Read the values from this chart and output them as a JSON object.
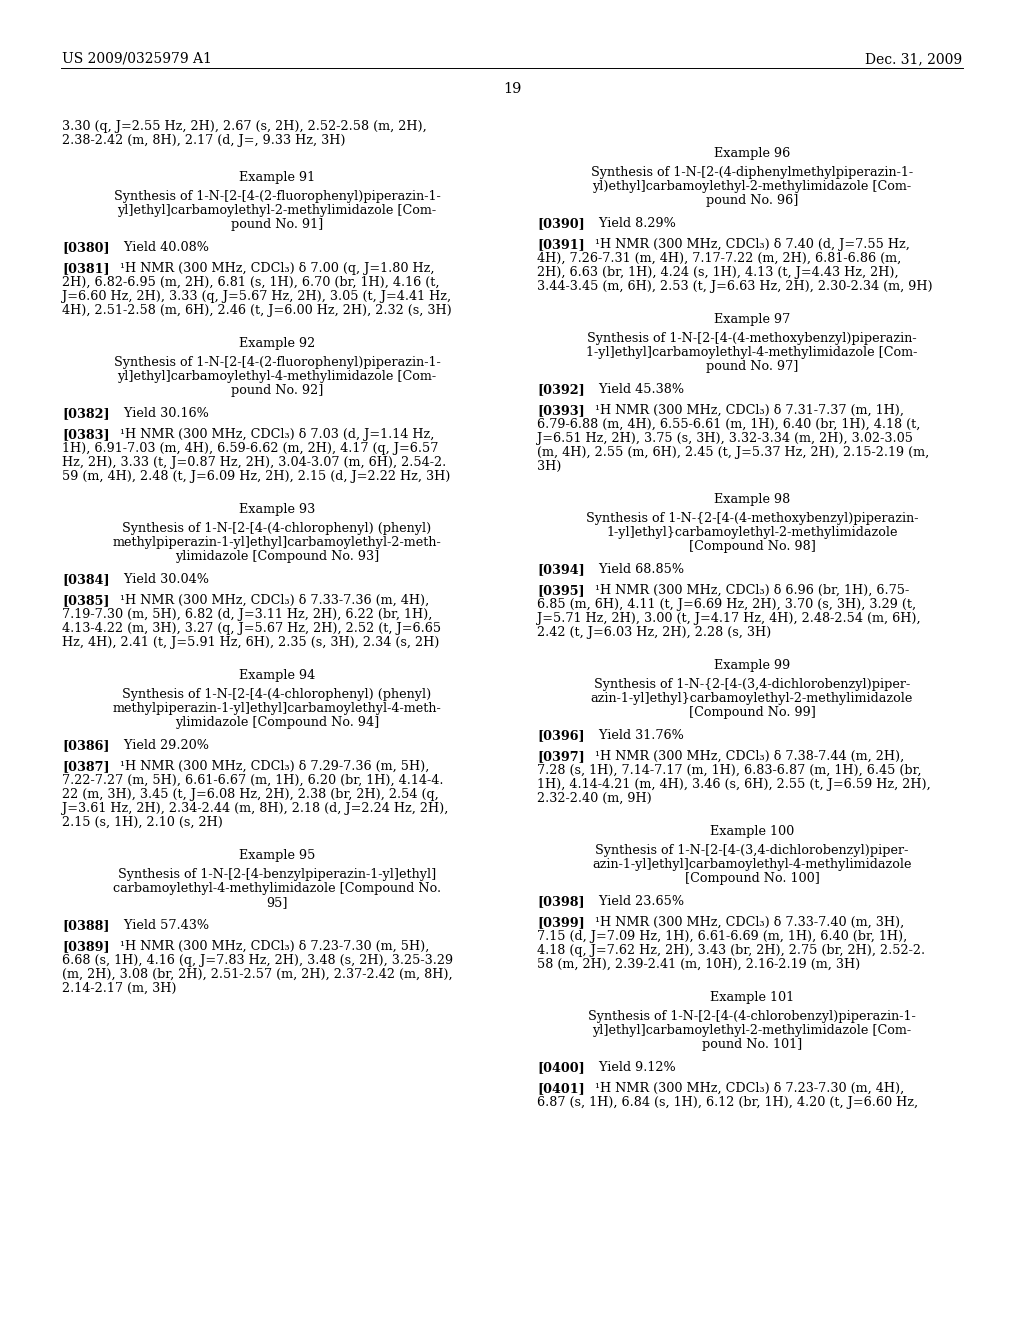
{
  "header_left": "US 2009/0325979 A1",
  "header_right": "Dec. 31, 2009",
  "page_number": "19",
  "background_color": "#ffffff",
  "left_column": [
    {
      "type": "continuation",
      "lines": [
        "3.30 (q, J=2.55 Hz, 2H), 2.67 (s, 2H), 2.52-2.58 (m, 2H),",
        "2.38-2.42 (m, 8H), 2.17 (d, J=, 9.33 Hz, 3H)"
      ]
    },
    {
      "type": "example_header",
      "text": "Example 91"
    },
    {
      "type": "example_title",
      "lines": [
        "Synthesis of 1-N-[2-[4-(2-fluorophenyl)piperazin-1-",
        "yl]ethyl]carbamoylethyl-2-methylimidazole [Com-",
        "pound No. 91]"
      ]
    },
    {
      "type": "yield",
      "tag": "[0380]",
      "text": "Yield 40.08%"
    },
    {
      "type": "nmr",
      "tag": "[0381]",
      "lines": [
        "¹H NMR (300 MHz, CDCl₃) δ 7.00 (q, J=1.80 Hz,",
        "2H), 6.82-6.95 (m, 2H), 6.81 (s, 1H), 6.70 (br, 1H), 4.16 (t,",
        "J=6.60 Hz, 2H), 3.33 (q, J=5.67 Hz, 2H), 3.05 (t, J=4.41 Hz,",
        "4H), 2.51-2.58 (m, 6H), 2.46 (t, J=6.00 Hz, 2H), 2.32 (s, 3H)"
      ]
    },
    {
      "type": "example_header",
      "text": "Example 92"
    },
    {
      "type": "example_title",
      "lines": [
        "Synthesis of 1-N-[2-[4-(2-fluorophenyl)piperazin-1-",
        "yl]ethyl]carbamoylethyl-4-methylimidazole [Com-",
        "pound No. 92]"
      ]
    },
    {
      "type": "yield",
      "tag": "[0382]",
      "text": "Yield 30.16%"
    },
    {
      "type": "nmr",
      "tag": "[0383]",
      "lines": [
        "¹H NMR (300 MHz, CDCl₃) δ 7.03 (d, J=1.14 Hz,",
        "1H), 6.91-7.03 (m, 4H), 6.59-6.62 (m, 2H), 4.17 (q, J=6.57",
        "Hz, 2H), 3.33 (t, J=0.87 Hz, 2H), 3.04-3.07 (m, 6H), 2.54-2.",
        "59 (m, 4H), 2.48 (t, J=6.09 Hz, 2H), 2.15 (d, J=2.22 Hz, 3H)"
      ]
    },
    {
      "type": "example_header",
      "text": "Example 93"
    },
    {
      "type": "example_title",
      "lines": [
        "Synthesis of 1-N-[2-[4-(4-chlorophenyl) (phenyl)",
        "methylpiperazin-1-yl]ethyl]carbamoylethyl-2-meth-",
        "ylimidazole [Compound No. 93]"
      ]
    },
    {
      "type": "yield",
      "tag": "[0384]",
      "text": "Yield 30.04%"
    },
    {
      "type": "nmr",
      "tag": "[0385]",
      "lines": [
        "¹H NMR (300 MHz, CDCl₃) δ 7.33-7.36 (m, 4H),",
        "7.19-7.30 (m, 5H), 6.82 (d, J=3.11 Hz, 2H), 6.22 (br, 1H),",
        "4.13-4.22 (m, 3H), 3.27 (q, J=5.67 Hz, 2H), 2.52 (t, J=6.65",
        "Hz, 4H), 2.41 (t, J=5.91 Hz, 6H), 2.35 (s, 3H), 2.34 (s, 2H)"
      ]
    },
    {
      "type": "example_header",
      "text": "Example 94"
    },
    {
      "type": "example_title",
      "lines": [
        "Synthesis of 1-N-[2-[4-(4-chlorophenyl) (phenyl)",
        "methylpiperazin-1-yl]ethyl]carbamoylethyl-4-meth-",
        "ylimidazole [Compound No. 94]"
      ]
    },
    {
      "type": "yield",
      "tag": "[0386]",
      "text": "Yield 29.20%"
    },
    {
      "type": "nmr",
      "tag": "[0387]",
      "lines": [
        "¹H NMR (300 MHz, CDCl₃) δ 7.29-7.36 (m, 5H),",
        "7.22-7.27 (m, 5H), 6.61-6.67 (m, 1H), 6.20 (br, 1H), 4.14-4.",
        "22 (m, 3H), 3.45 (t, J=6.08 Hz, 2H), 2.38 (br, 2H), 2.54 (q,",
        "J=3.61 Hz, 2H), 2.34-2.44 (m, 8H), 2.18 (d, J=2.24 Hz, 2H),",
        "2.15 (s, 1H), 2.10 (s, 2H)"
      ]
    },
    {
      "type": "example_header",
      "text": "Example 95"
    },
    {
      "type": "example_title",
      "lines": [
        "Synthesis of 1-N-[2-[4-benzylpiperazin-1-yl]ethyl]",
        "carbamoylethyl-4-methylimidazole [Compound No.",
        "95]"
      ]
    },
    {
      "type": "yield",
      "tag": "[0388]",
      "text": "Yield 57.43%"
    },
    {
      "type": "nmr",
      "tag": "[0389]",
      "lines": [
        "¹H NMR (300 MHz, CDCl₃) δ 7.23-7.30 (m, 5H),",
        "6.68 (s, 1H), 4.16 (q, J=7.83 Hz, 2H), 3.48 (s, 2H), 3.25-3.29",
        "(m, 2H), 3.08 (br, 2H), 2.51-2.57 (m, 2H), 2.37-2.42 (m, 8H),",
        "2.14-2.17 (m, 3H)"
      ]
    }
  ],
  "right_column": [
    {
      "type": "example_header",
      "text": "Example 96"
    },
    {
      "type": "example_title",
      "lines": [
        "Synthesis of 1-N-[2-(4-diphenylmethylpiperazin-1-",
        "yl)ethyl]carbamoylethyl-2-methylimidazole [Com-",
        "pound No. 96]"
      ]
    },
    {
      "type": "yield",
      "tag": "[0390]",
      "text": "Yield 8.29%"
    },
    {
      "type": "nmr",
      "tag": "[0391]",
      "lines": [
        "¹H NMR (300 MHz, CDCl₃) δ 7.40 (d, J=7.55 Hz,",
        "4H), 7.26-7.31 (m, 4H), 7.17-7.22 (m, 2H), 6.81-6.86 (m,",
        "2H), 6.63 (br, 1H), 4.24 (s, 1H), 4.13 (t, J=4.43 Hz, 2H),",
        "3.44-3.45 (m, 6H), 2.53 (t, J=6.63 Hz, 2H), 2.30-2.34 (m, 9H)"
      ]
    },
    {
      "type": "example_header",
      "text": "Example 97"
    },
    {
      "type": "example_title",
      "lines": [
        "Synthesis of 1-N-[2-[4-(4-methoxybenzyl)piperazin-",
        "1-yl]ethyl]carbamoylethyl-4-methylimidazole [Com-",
        "pound No. 97]"
      ]
    },
    {
      "type": "yield",
      "tag": "[0392]",
      "text": "Yield 45.38%"
    },
    {
      "type": "nmr",
      "tag": "[0393]",
      "lines": [
        "¹H NMR (300 MHz, CDCl₃) δ 7.31-7.37 (m, 1H),",
        "6.79-6.88 (m, 4H), 6.55-6.61 (m, 1H), 6.40 (br, 1H), 4.18 (t,",
        "J=6.51 Hz, 2H), 3.75 (s, 3H), 3.32-3.34 (m, 2H), 3.02-3.05",
        "(m, 4H), 2.55 (m, 6H), 2.45 (t, J=5.37 Hz, 2H), 2.15-2.19 (m,",
        "3H)"
      ]
    },
    {
      "type": "example_header",
      "text": "Example 98"
    },
    {
      "type": "example_title",
      "lines": [
        "Synthesis of 1-N-{2-[4-(4-methoxybenzyl)piperazin-",
        "1-yl]ethyl}carbamoylethyl-2-methylimidazole",
        "[Compound No. 98]"
      ]
    },
    {
      "type": "yield",
      "tag": "[0394]",
      "text": "Yield 68.85%"
    },
    {
      "type": "nmr",
      "tag": "[0395]",
      "lines": [
        "¹H NMR (300 MHz, CDCl₃) δ 6.96 (br, 1H), 6.75-",
        "6.85 (m, 6H), 4.11 (t, J=6.69 Hz, 2H), 3.70 (s, 3H), 3.29 (t,",
        "J=5.71 Hz, 2H), 3.00 (t, J=4.17 Hz, 4H), 2.48-2.54 (m, 6H),",
        "2.42 (t, J=6.03 Hz, 2H), 2.28 (s, 3H)"
      ]
    },
    {
      "type": "example_header",
      "text": "Example 99"
    },
    {
      "type": "example_title",
      "lines": [
        "Synthesis of 1-N-{2-[4-(3,4-dichlorobenzyl)piper-",
        "azin-1-yl]ethyl}carbamoylethyl-2-methylimidazole",
        "[Compound No. 99]"
      ]
    },
    {
      "type": "yield",
      "tag": "[0396]",
      "text": "Yield 31.76%"
    },
    {
      "type": "nmr",
      "tag": "[0397]",
      "lines": [
        "¹H NMR (300 MHz, CDCl₃) δ 7.38-7.44 (m, 2H),",
        "7.28 (s, 1H), 7.14-7.17 (m, 1H), 6.83-6.87 (m, 1H), 6.45 (br,",
        "1H), 4.14-4.21 (m, 4H), 3.46 (s, 6H), 2.55 (t, J=6.59 Hz, 2H),",
        "2.32-2.40 (m, 9H)"
      ]
    },
    {
      "type": "example_header",
      "text": "Example 100"
    },
    {
      "type": "example_title",
      "lines": [
        "Synthesis of 1-N-[2-[4-(3,4-dichlorobenzyl)piper-",
        "azin-1-yl]ethyl]carbamoylethyl-4-methylimidazole",
        "[Compound No. 100]"
      ]
    },
    {
      "type": "yield",
      "tag": "[0398]",
      "text": "Yield 23.65%"
    },
    {
      "type": "nmr",
      "tag": "[0399]",
      "lines": [
        "¹H NMR (300 MHz, CDCl₃) δ 7.33-7.40 (m, 3H),",
        "7.15 (d, J=7.09 Hz, 1H), 6.61-6.69 (m, 1H), 6.40 (br, 1H),",
        "4.18 (q, J=7.62 Hz, 2H), 3.43 (br, 2H), 2.75 (br, 2H), 2.52-2.",
        "58 (m, 2H), 2.39-2.41 (m, 10H), 2.16-2.19 (m, 3H)"
      ]
    },
    {
      "type": "example_header",
      "text": "Example 101"
    },
    {
      "type": "example_title",
      "lines": [
        "Synthesis of 1-N-[2-[4-(4-chlorobenzyl)piperazin-1-",
        "yl]ethyl]carbamoylethyl-2-methylimidazole [Com-",
        "pound No. 101]"
      ]
    },
    {
      "type": "yield",
      "tag": "[0400]",
      "text": "Yield 9.12%"
    },
    {
      "type": "nmr_partial",
      "tag": "[0401]",
      "lines": [
        "¹H NMR (300 MHz, CDCl₃) δ 7.23-7.30 (m, 4H),",
        "6.87 (s, 1H), 6.84 (s, 1H), 6.12 (br, 1H), 4.20 (t, J=6.60 Hz,"
      ]
    }
  ]
}
